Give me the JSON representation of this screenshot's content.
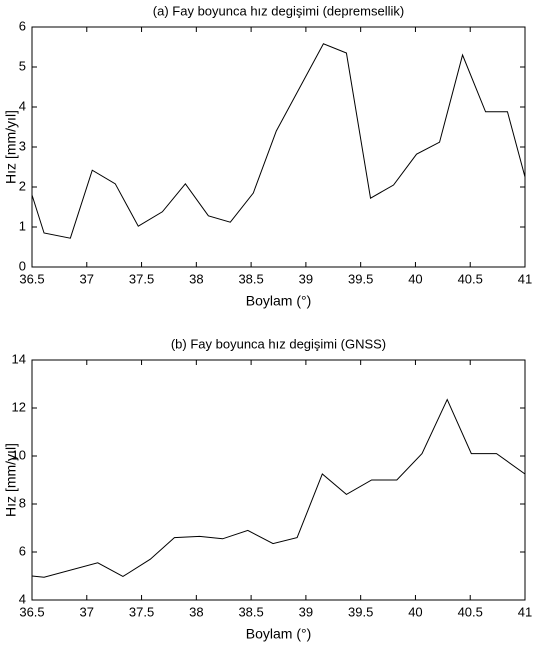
{
  "chart_data": [
    {
      "type": "line",
      "title": "(a) Fay boyunca hız degişimi (depremsellik)",
      "xlabel": "Boylam (°)",
      "ylabel": "Hız [mm/yıl]",
      "x": [
        36.5,
        36.61,
        36.85,
        37.05,
        37.26,
        37.47,
        37.69,
        37.9,
        38.11,
        38.31,
        38.52,
        38.73,
        39.16,
        39.37,
        39.59,
        39.8,
        40.01,
        40.22,
        40.43,
        40.64,
        40.84,
        41
      ],
      "series": [
        {
          "color": "#000000",
          "values": [
            1.8,
            0.85,
            0.72,
            2.42,
            2.08,
            1.02,
            1.38,
            2.08,
            1.28,
            1.12,
            1.85,
            3.4,
            5.58,
            5.35,
            1.72,
            2.05,
            2.82,
            3.12,
            5.3,
            3.88,
            3.88,
            2.25
          ]
        }
      ],
      "xlim": [
        36.5,
        41
      ],
      "xticks": [
        36.5,
        37,
        37.5,
        38,
        38.5,
        39,
        39.5,
        40,
        40.5,
        41
      ],
      "ylim": [
        0,
        6
      ],
      "yticks": [
        0,
        1,
        2,
        3,
        4,
        5,
        6
      ]
    },
    {
      "type": "line",
      "title": "(b) Fay boyunca hız degişimi (GNSS)",
      "xlabel": "Boylam (°)",
      "ylabel": "Hız [mm/yıl]",
      "x": [
        36.5,
        36.61,
        37.1,
        37.33,
        37.58,
        37.8,
        38.03,
        38.24,
        38.47,
        38.7,
        38.92,
        39.15,
        39.37,
        39.6,
        39.83,
        40.06,
        40.29,
        40.51,
        40.74,
        41
      ],
      "series": [
        {
          "color": "#000000",
          "values": [
            5.0,
            4.95,
            5.55,
            4.98,
            5.7,
            6.6,
            6.65,
            6.55,
            6.9,
            6.35,
            6.6,
            9.25,
            8.4,
            9.0,
            9.0,
            10.1,
            12.35,
            10.1,
            10.1,
            9.25
          ]
        }
      ],
      "xlim": [
        36.5,
        41
      ],
      "xticks": [
        36.5,
        37,
        37.5,
        38,
        38.5,
        39,
        39.5,
        40,
        40.5,
        41
      ],
      "ylim": [
        4,
        14
      ],
      "yticks": [
        4,
        6,
        8,
        10,
        12,
        14
      ]
    }
  ]
}
